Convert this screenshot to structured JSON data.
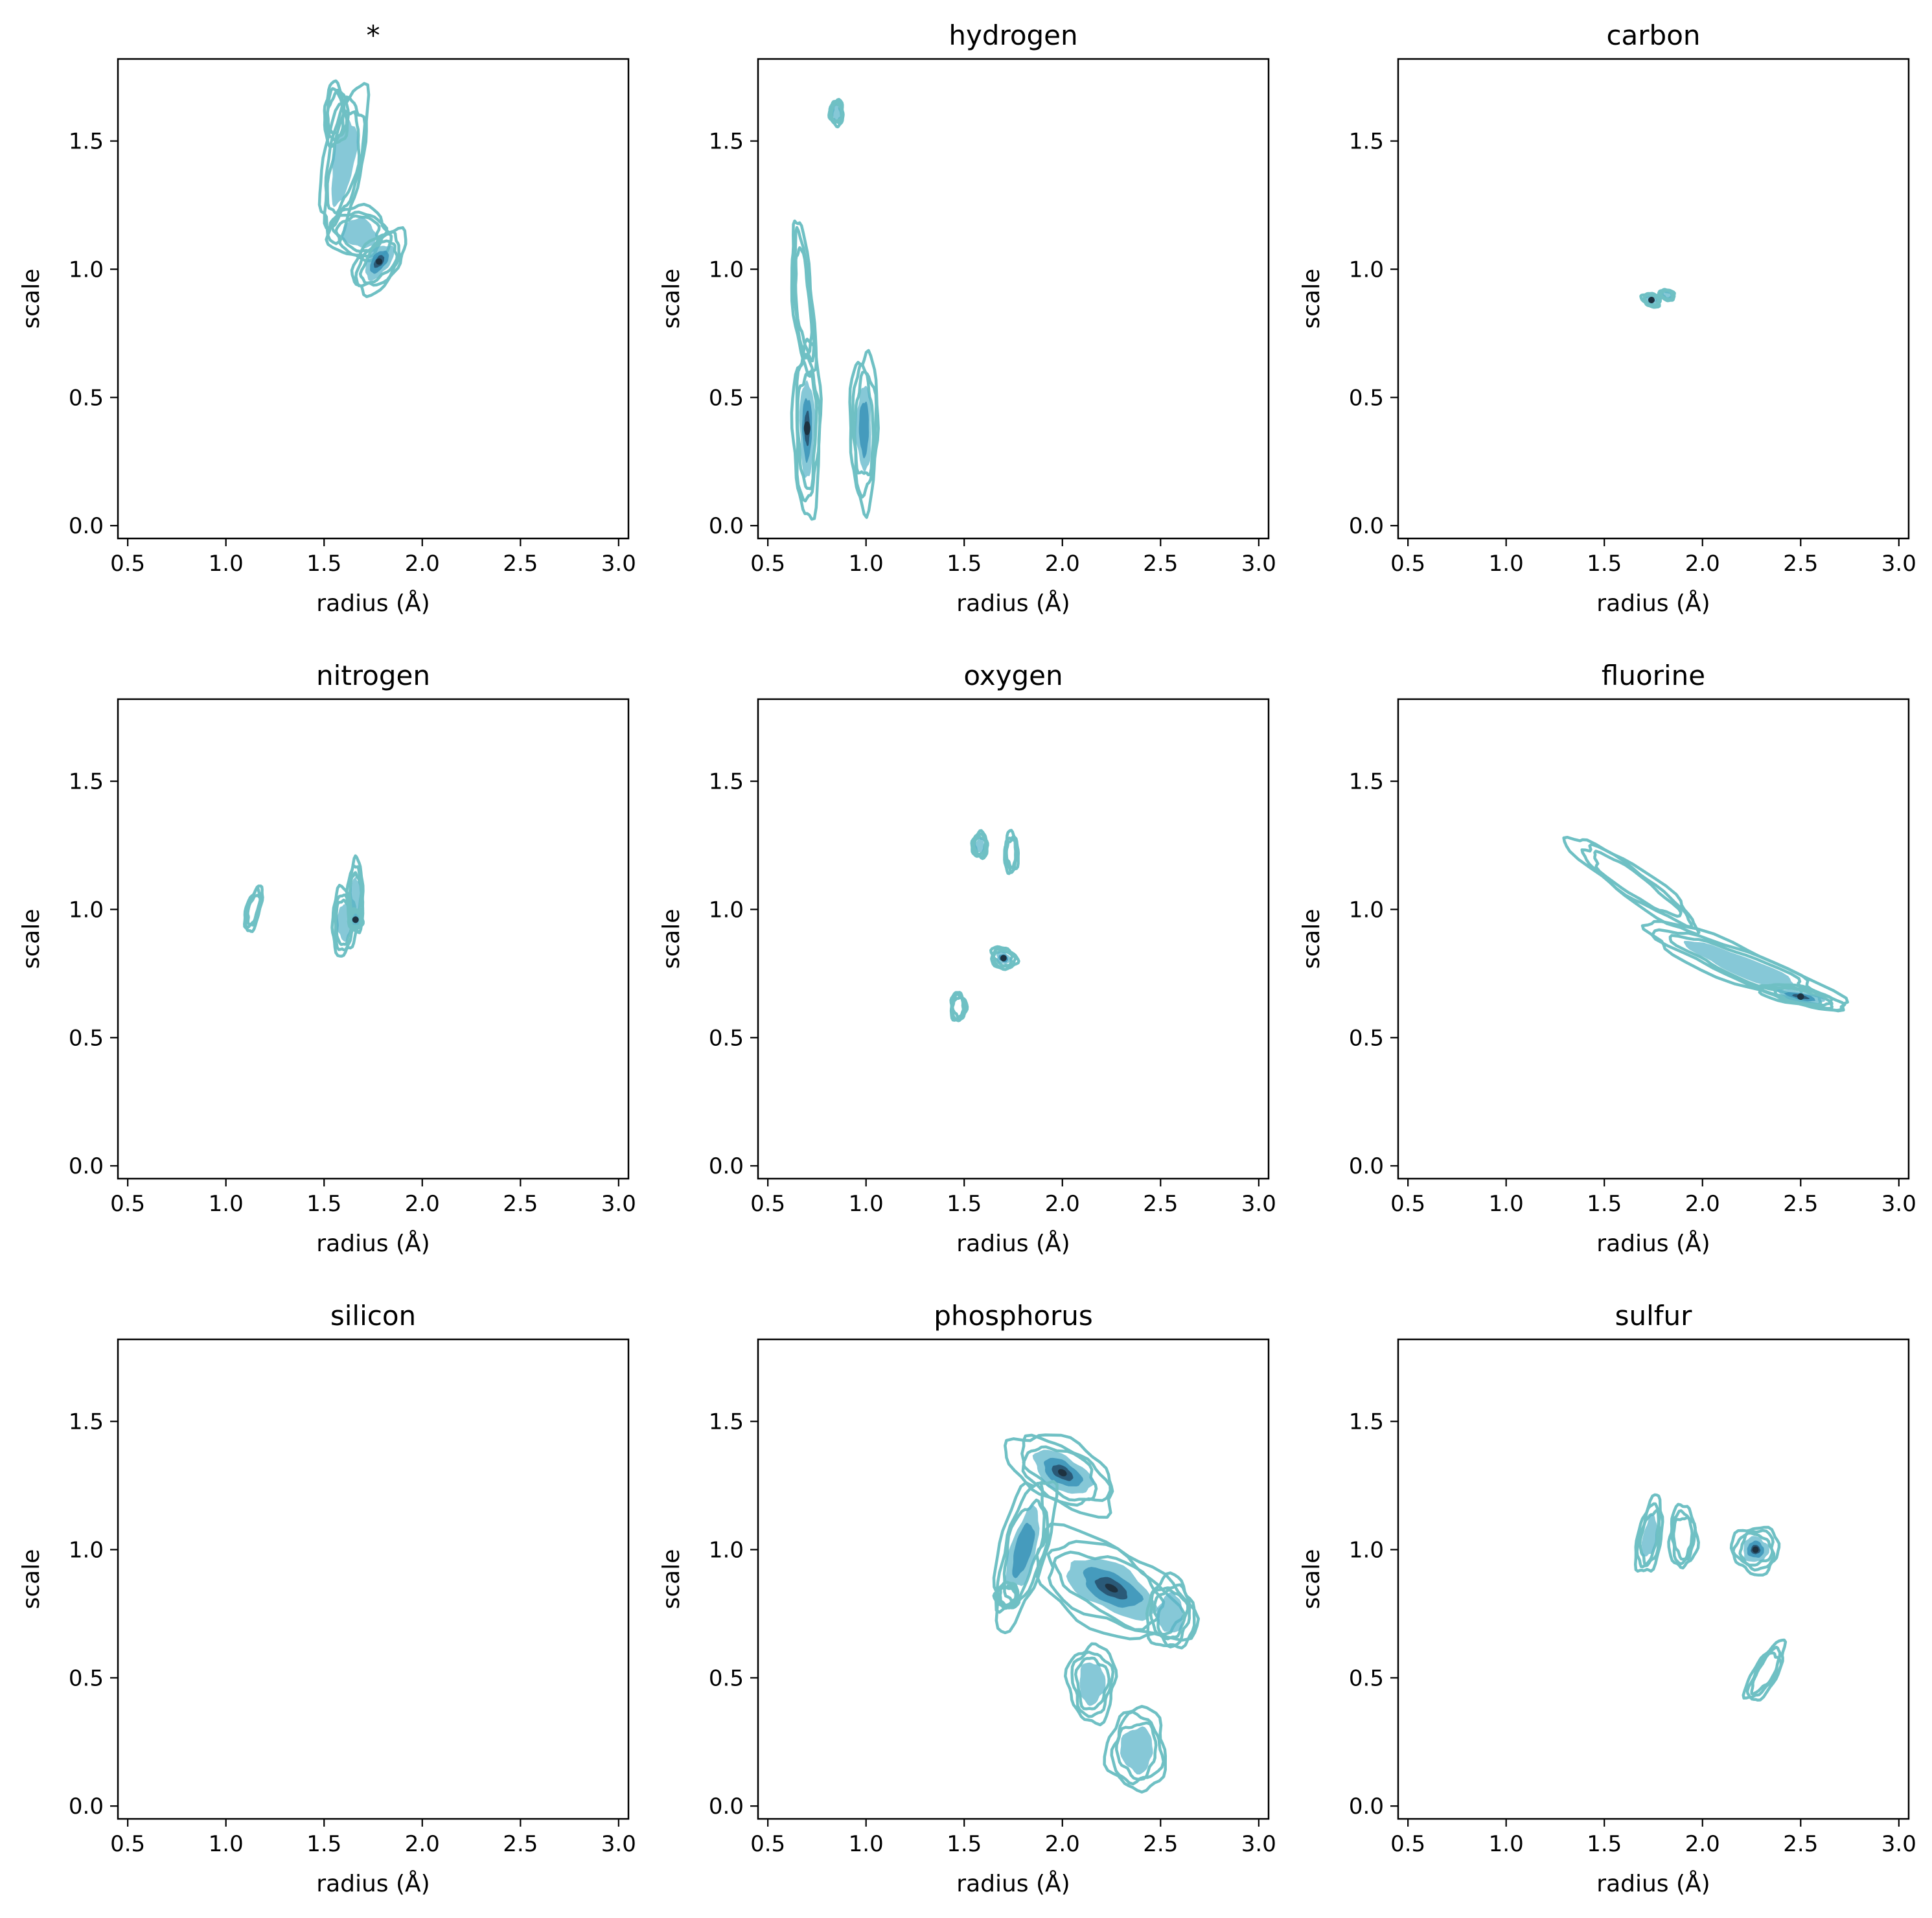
{
  "figure": {
    "colors": {
      "contour_outer": "#6fc0c4",
      "fill_light": "#5db6c9",
      "fill_mid": "#3a93b8",
      "fill_dark": "#2a5a78",
      "core": "#1e3240"
    }
  },
  "chart_data": [
    {
      "type": "density-contour",
      "title": "*",
      "xlabel": "radius (Å)",
      "ylabel": "scale",
      "xlim": [
        0.45,
        3.05
      ],
      "ylim": [
        -0.05,
        1.82
      ],
      "xticks": [
        "0.5",
        "1.0",
        "1.5",
        "2.0",
        "2.5",
        "3.0"
      ],
      "yticks": [
        "0.0",
        "0.5",
        "1.0",
        "1.5"
      ],
      "xtick_values": [
        0.5,
        1.0,
        1.5,
        2.0,
        2.5,
        3.0
      ],
      "ytick_values": [
        0.0,
        0.5,
        1.0,
        1.5
      ],
      "regions": [
        {
          "cx": 1.6,
          "cy": 1.42,
          "rx": 0.1,
          "ry": 0.3,
          "angle": -10,
          "fill": 0.3
        },
        {
          "cx": 1.68,
          "cy": 1.14,
          "rx": 0.16,
          "ry": 0.1,
          "angle": -20,
          "fill": 0.4
        },
        {
          "cx": 1.78,
          "cy": 1.03,
          "rx": 0.1,
          "ry": 0.14,
          "angle": -35,
          "fill": 0.9
        },
        {
          "cx": 1.56,
          "cy": 1.6,
          "rx": 0.06,
          "ry": 0.12,
          "angle": 0,
          "fill": 0
        }
      ]
    },
    {
      "type": "density-contour",
      "title": "hydrogen",
      "xlabel": "radius (Å)",
      "ylabel": "scale",
      "xlim": [
        0.45,
        3.05
      ],
      "ylim": [
        -0.05,
        1.82
      ],
      "xticks": [
        "0.5",
        "1.0",
        "1.5",
        "2.0",
        "2.5",
        "3.0"
      ],
      "yticks": [
        "0.0",
        "0.5",
        "1.0",
        "1.5"
      ],
      "xtick_values": [
        0.5,
        1.0,
        1.5,
        2.0,
        2.5,
        3.0
      ],
      "ytick_values": [
        0.0,
        0.5,
        1.0,
        1.5
      ],
      "regions": [
        {
          "cx": 0.85,
          "cy": 1.61,
          "rx": 0.035,
          "ry": 0.05,
          "angle": 0,
          "fill": 0.3
        },
        {
          "cx": 0.68,
          "cy": 0.88,
          "rx": 0.05,
          "ry": 0.3,
          "angle": 5,
          "fill": 0
        },
        {
          "cx": 0.7,
          "cy": 0.38,
          "rx": 0.07,
          "ry": 0.34,
          "angle": 0,
          "fill": 1
        },
        {
          "cx": 0.99,
          "cy": 0.38,
          "rx": 0.07,
          "ry": 0.3,
          "angle": 0,
          "fill": 0.7
        }
      ]
    },
    {
      "type": "density-contour",
      "title": "carbon",
      "xlabel": "radius (Å)",
      "ylabel": "scale",
      "xlim": [
        0.45,
        3.05
      ],
      "ylim": [
        -0.05,
        1.82
      ],
      "xticks": [
        "0.5",
        "1.0",
        "1.5",
        "2.0",
        "2.5",
        "3.0"
      ],
      "yticks": [
        "0.0",
        "0.5",
        "1.0",
        "1.5"
      ],
      "xtick_values": [
        0.5,
        1.0,
        1.5,
        2.0,
        2.5,
        3.0
      ],
      "ytick_values": [
        0.0,
        0.5,
        1.0,
        1.5
      ],
      "regions": [
        {
          "cx": 1.74,
          "cy": 0.88,
          "rx": 0.05,
          "ry": 0.025,
          "angle": -20,
          "fill": 0.8
        },
        {
          "cx": 1.82,
          "cy": 0.9,
          "rx": 0.04,
          "ry": 0.02,
          "angle": -20,
          "fill": 0.2
        }
      ]
    },
    {
      "type": "density-contour",
      "title": "nitrogen",
      "xlabel": "radius (Å)",
      "ylabel": "scale",
      "xlim": [
        0.45,
        3.05
      ],
      "ylim": [
        -0.05,
        1.82
      ],
      "xticks": [
        "0.5",
        "1.0",
        "1.5",
        "2.0",
        "2.5",
        "3.0"
      ],
      "yticks": [
        "0.0",
        "0.5",
        "1.0",
        "1.5"
      ],
      "xtick_values": [
        0.5,
        1.0,
        1.5,
        2.0,
        2.5,
        3.0
      ],
      "ytick_values": [
        0.0,
        0.5,
        1.0,
        1.5
      ],
      "regions": [
        {
          "cx": 1.14,
          "cy": 1.0,
          "rx": 0.035,
          "ry": 0.09,
          "angle": -15,
          "fill": 0
        },
        {
          "cx": 1.6,
          "cy": 0.95,
          "rx": 0.06,
          "ry": 0.13,
          "angle": 0,
          "fill": 0.3
        },
        {
          "cx": 1.66,
          "cy": 1.05,
          "rx": 0.04,
          "ry": 0.14,
          "angle": 0,
          "fill": 0.2
        },
        {
          "cx": 1.66,
          "cy": 0.96,
          "rx": 0.035,
          "ry": 0.04,
          "angle": 0,
          "fill": 0.9
        }
      ]
    },
    {
      "type": "density-contour",
      "title": "oxygen",
      "xlabel": "radius (Å)",
      "ylabel": "scale",
      "xlim": [
        0.45,
        3.05
      ],
      "ylim": [
        -0.05,
        1.82
      ],
      "xticks": [
        "0.5",
        "1.0",
        "1.5",
        "2.0",
        "2.5",
        "3.0"
      ],
      "yticks": [
        "0.0",
        "0.5",
        "1.0",
        "1.5"
      ],
      "xtick_values": [
        0.5,
        1.0,
        1.5,
        2.0,
        2.5,
        3.0
      ],
      "ytick_values": [
        0.0,
        0.5,
        1.0,
        1.5
      ],
      "regions": [
        {
          "cx": 1.58,
          "cy": 1.25,
          "rx": 0.04,
          "ry": 0.05,
          "angle": 0,
          "fill": 0.3
        },
        {
          "cx": 1.74,
          "cy": 1.22,
          "rx": 0.035,
          "ry": 0.08,
          "angle": 0,
          "fill": 0
        },
        {
          "cx": 1.7,
          "cy": 0.81,
          "rx": 0.07,
          "ry": 0.04,
          "angle": -25,
          "fill": 0.9
        },
        {
          "cx": 1.47,
          "cy": 0.62,
          "rx": 0.04,
          "ry": 0.055,
          "angle": 0,
          "fill": 0
        }
      ]
    },
    {
      "type": "density-contour",
      "title": "fluorine",
      "xlabel": "radius (Å)",
      "ylabel": "scale",
      "xlim": [
        0.45,
        3.05
      ],
      "ylim": [
        -0.05,
        1.82
      ],
      "xticks": [
        "0.5",
        "1.0",
        "1.5",
        "2.0",
        "2.5",
        "3.0"
      ],
      "yticks": [
        "0.0",
        "0.5",
        "1.0",
        "1.5"
      ],
      "xtick_values": [
        0.5,
        1.0,
        1.5,
        2.0,
        2.5,
        3.0
      ],
      "ytick_values": [
        0.0,
        0.5,
        1.0,
        1.5
      ],
      "regions": [
        {
          "cx": 1.65,
          "cy": 1.1,
          "rx": 0.4,
          "ry": 0.06,
          "angle": -35,
          "fill": 0
        },
        {
          "cx": 2.2,
          "cy": 0.78,
          "rx": 0.55,
          "ry": 0.07,
          "angle": -22,
          "fill": 0.3
        },
        {
          "cx": 2.5,
          "cy": 0.66,
          "rx": 0.22,
          "ry": 0.035,
          "angle": -12,
          "fill": 0.8
        }
      ]
    },
    {
      "type": "density-contour",
      "title": "silicon",
      "xlabel": "radius (Å)",
      "ylabel": "scale",
      "xlim": [
        0.45,
        3.05
      ],
      "ylim": [
        -0.05,
        1.82
      ],
      "xticks": [
        "0.5",
        "1.0",
        "1.5",
        "2.0",
        "2.5",
        "3.0"
      ],
      "yticks": [
        "0.0",
        "0.5",
        "1.0",
        "1.5"
      ],
      "xtick_values": [
        0.5,
        1.0,
        1.5,
        2.0,
        2.5,
        3.0
      ],
      "ytick_values": [
        0.0,
        0.5,
        1.0,
        1.5
      ],
      "regions": []
    },
    {
      "type": "density-contour",
      "title": "phosphorus",
      "xlabel": "radius (Å)",
      "ylabel": "scale",
      "xlim": [
        0.45,
        3.05
      ],
      "ylim": [
        -0.05,
        1.82
      ],
      "xticks": [
        "0.5",
        "1.0",
        "1.5",
        "2.0",
        "2.5",
        "3.0"
      ],
      "yticks": [
        "0.0",
        "0.5",
        "1.0",
        "1.5"
      ],
      "xtick_values": [
        0.5,
        1.0,
        1.5,
        2.0,
        2.5,
        3.0
      ],
      "ytick_values": [
        0.0,
        0.5,
        1.0,
        1.5
      ],
      "regions": [
        {
          "cx": 2.0,
          "cy": 1.3,
          "rx": 0.3,
          "ry": 0.12,
          "angle": -30,
          "fill": 0.9
        },
        {
          "cx": 1.8,
          "cy": 1.0,
          "rx": 0.12,
          "ry": 0.3,
          "angle": -15,
          "fill": 0.6
        },
        {
          "cx": 2.25,
          "cy": 0.85,
          "rx": 0.45,
          "ry": 0.16,
          "angle": -28,
          "fill": 0.9
        },
        {
          "cx": 2.55,
          "cy": 0.75,
          "rx": 0.12,
          "ry": 0.14,
          "angle": 0,
          "fill": 0.3
        },
        {
          "cx": 2.15,
          "cy": 0.48,
          "rx": 0.12,
          "ry": 0.15,
          "angle": 0,
          "fill": 0.2
        },
        {
          "cx": 2.38,
          "cy": 0.22,
          "rx": 0.15,
          "ry": 0.16,
          "angle": 0,
          "fill": 0.3
        },
        {
          "cx": 1.72,
          "cy": 0.82,
          "rx": 0.06,
          "ry": 0.05,
          "angle": 0,
          "fill": 0
        }
      ]
    },
    {
      "type": "density-contour",
      "title": "sulfur",
      "xlabel": "radius (Å)",
      "ylabel": "scale",
      "xlim": [
        0.45,
        3.05
      ],
      "ylim": [
        -0.05,
        1.82
      ],
      "xticks": [
        "0.5",
        "1.0",
        "1.5",
        "2.0",
        "2.5",
        "3.0"
      ],
      "yticks": [
        "0.0",
        "0.5",
        "1.0",
        "1.5"
      ],
      "xtick_values": [
        0.5,
        1.0,
        1.5,
        2.0,
        2.5,
        3.0
      ],
      "ytick_values": [
        0.0,
        0.5,
        1.0,
        1.5
      ],
      "regions": [
        {
          "cx": 1.73,
          "cy": 1.05,
          "rx": 0.06,
          "ry": 0.15,
          "angle": -10,
          "fill": 0.3
        },
        {
          "cx": 1.9,
          "cy": 1.05,
          "rx": 0.07,
          "ry": 0.12,
          "angle": 0,
          "fill": 0
        },
        {
          "cx": 2.27,
          "cy": 1.0,
          "rx": 0.12,
          "ry": 0.09,
          "angle": -30,
          "fill": 1
        },
        {
          "cx": 2.32,
          "cy": 0.52,
          "rx": 0.06,
          "ry": 0.13,
          "angle": -30,
          "fill": 0
        }
      ]
    }
  ]
}
